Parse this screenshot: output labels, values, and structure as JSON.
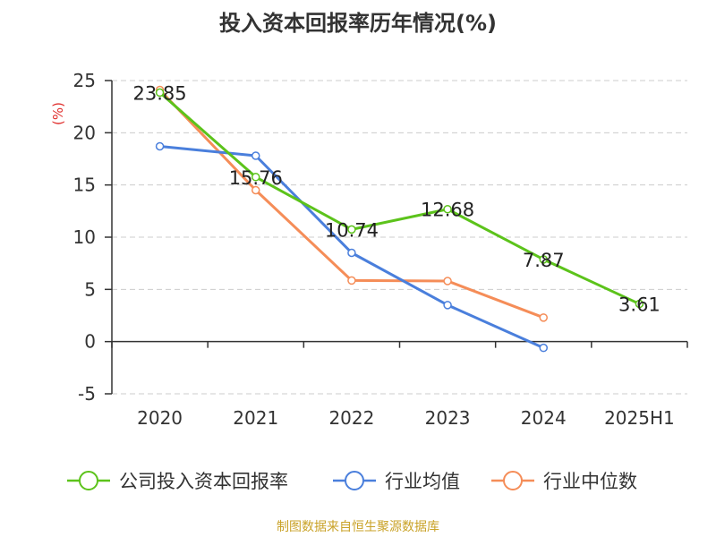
{
  "title": "投入资本回报率历年情况(%)",
  "unit_label": "(%)",
  "source_note": "制图数据来自恒生聚源数据库",
  "colors": {
    "title": "#333333",
    "axis": "#333333",
    "grid": "#cccccc",
    "unit_label": "#e0302e",
    "source_note": "#c9a227"
  },
  "chart_data": {
    "type": "line",
    "title": "投入资本回报率历年情况(%)",
    "xlabel": "",
    "ylabel": "(%)",
    "categories": [
      "2020",
      "2021",
      "2022",
      "2023",
      "2024",
      "2025H1"
    ],
    "ylim": [
      -5,
      25
    ],
    "yticks": [
      -5,
      0,
      5,
      10,
      15,
      20,
      25
    ],
    "grid": true,
    "legend_position": "bottom",
    "series": [
      {
        "name": "公司投入资本回报率",
        "color": "#5cc31b",
        "values": [
          23.85,
          15.76,
          10.74,
          12.68,
          7.87,
          3.61
        ],
        "show_labels": true
      },
      {
        "name": "行业均值",
        "color": "#4a7fdc",
        "values": [
          18.7,
          17.8,
          8.5,
          3.5,
          -0.6,
          null
        ],
        "show_labels": false
      },
      {
        "name": "行业中位数",
        "color": "#f58d58",
        "values": [
          24.1,
          14.5,
          5.85,
          5.8,
          2.3,
          null
        ],
        "show_labels": false
      }
    ]
  }
}
